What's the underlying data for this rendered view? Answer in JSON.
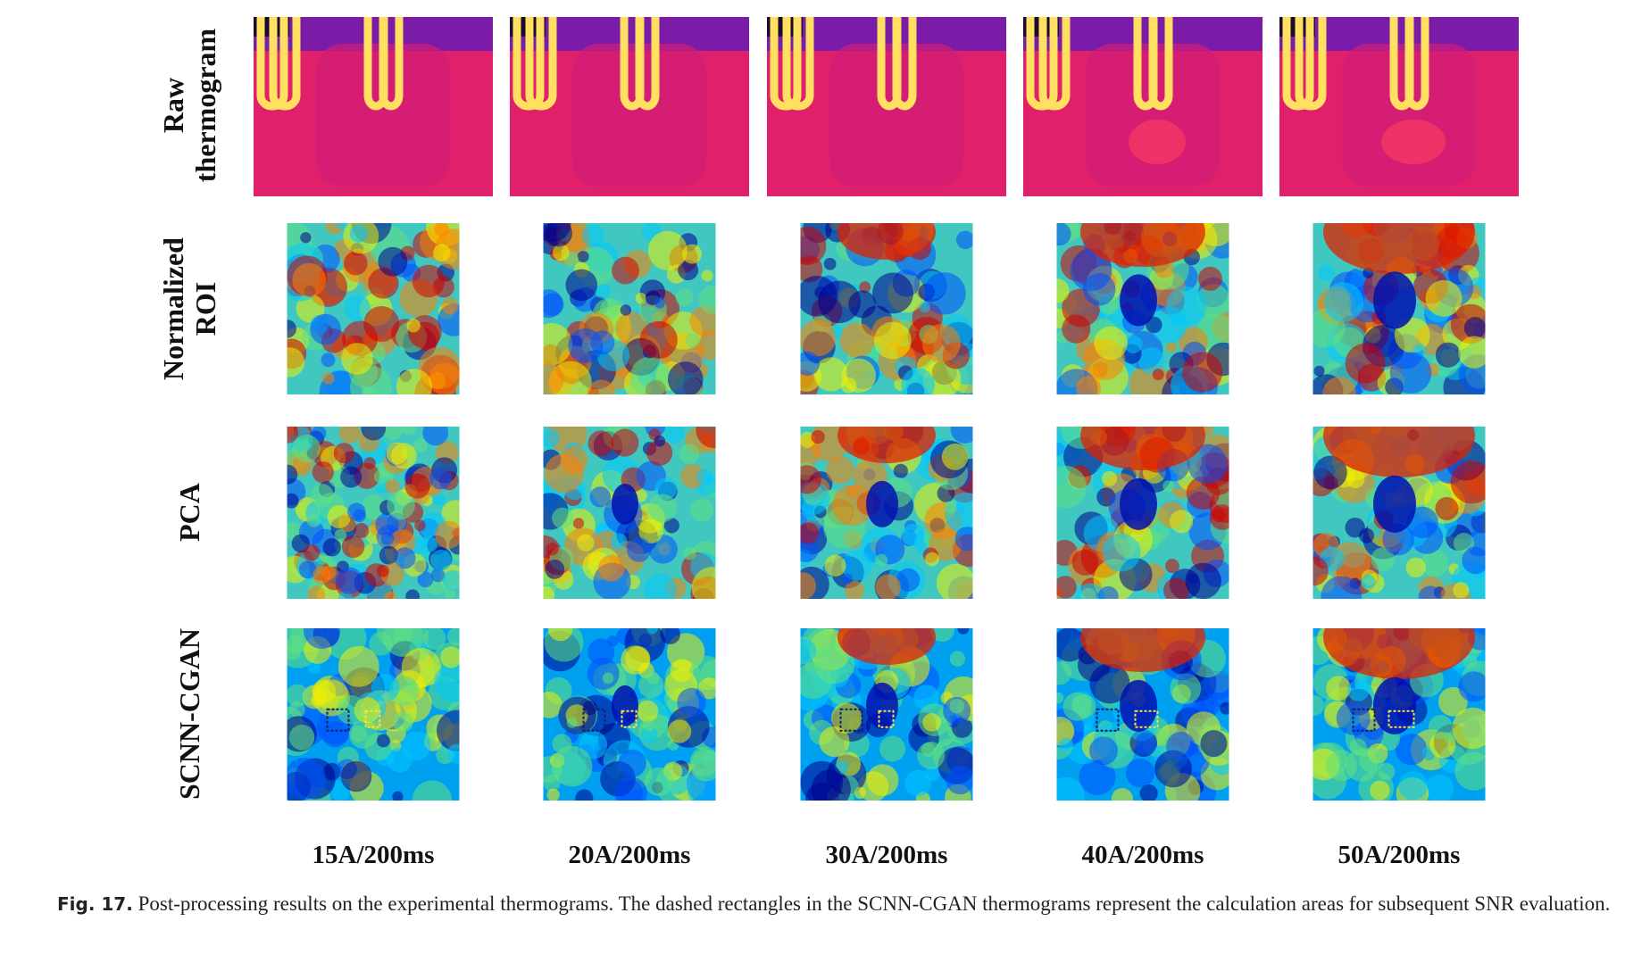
{
  "figure": {
    "row_labels": [
      [
        "Raw",
        "thermogram"
      ],
      [
        "Normalized",
        "ROI"
      ],
      [
        "PCA"
      ],
      [
        "SCNN-CGAN"
      ]
    ],
    "column_labels": [
      "15A/200ms",
      "20A/200ms",
      "30A/200ms",
      "40A/200ms",
      "50A/200ms"
    ],
    "caption": {
      "label": "Fig. 17.",
      "text": "Post-processing results on the experimental thermograms. The dashed rectangles in the SCNN-CGAN thermograms represent the calculation areas for subsequent SNR evaluation."
    }
  }
}
